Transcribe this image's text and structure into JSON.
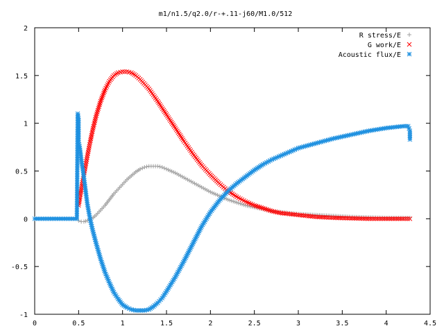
{
  "chart_data": {
    "type": "scatter",
    "title": "m1/n1.5/q2.0/r-+.11-j60/M1.0/512",
    "xlabel": "",
    "ylabel": "",
    "xlim": [
      0,
      4.5
    ],
    "ylim": [
      -1,
      2
    ],
    "xticks": [
      "0",
      "0.5",
      "1",
      "1.5",
      "2",
      "2.5",
      "3",
      "3.5",
      "4",
      "4.5"
    ],
    "yticks": [
      "2",
      "1.5",
      "1",
      "0.5",
      "0",
      "-0.5",
      "-1"
    ],
    "legend_position": "top-right",
    "series": [
      {
        "name": "R stress/E",
        "marker": "plus",
        "color": "#a0a0a0",
        "x": [
          0.5,
          0.53,
          0.56,
          0.6,
          0.65,
          0.7,
          0.75,
          0.8,
          0.85,
          0.9,
          0.95,
          1.0,
          1.05,
          1.1,
          1.15,
          1.2,
          1.25,
          1.3,
          1.35,
          1.4,
          1.45,
          1.5,
          1.6,
          1.7,
          1.8,
          1.9,
          2.0,
          2.1,
          2.2,
          2.3,
          2.4,
          2.5,
          2.6,
          2.7,
          2.8,
          2.9,
          3.0,
          3.2,
          3.4,
          3.6,
          3.8,
          4.0,
          4.2,
          4.27
        ],
        "y": [
          -0.02,
          -0.03,
          -0.03,
          -0.02,
          0.0,
          0.04,
          0.09,
          0.14,
          0.2,
          0.26,
          0.31,
          0.36,
          0.41,
          0.45,
          0.49,
          0.52,
          0.54,
          0.55,
          0.55,
          0.55,
          0.54,
          0.52,
          0.48,
          0.43,
          0.38,
          0.33,
          0.28,
          0.24,
          0.2,
          0.17,
          0.14,
          0.12,
          0.1,
          0.08,
          0.07,
          0.06,
          0.05,
          0.04,
          0.03,
          0.02,
          0.015,
          0.01,
          0.01,
          0.01
        ]
      },
      {
        "name": "G work/E",
        "marker": "cross",
        "color": "#ff0000",
        "x": [
          0.5,
          0.52,
          0.54,
          0.56,
          0.58,
          0.6,
          0.63,
          0.66,
          0.7,
          0.75,
          0.8,
          0.85,
          0.9,
          0.95,
          1.0,
          1.05,
          1.1,
          1.15,
          1.2,
          1.3,
          1.4,
          1.5,
          1.6,
          1.7,
          1.8,
          1.9,
          2.0,
          2.1,
          2.2,
          2.3,
          2.4,
          2.5,
          2.6,
          2.7,
          2.8,
          2.9,
          3.0,
          3.2,
          3.4,
          3.6,
          3.8,
          4.0,
          4.2,
          4.27
        ],
        "y": [
          0.14,
          0.25,
          0.36,
          0.46,
          0.56,
          0.66,
          0.8,
          0.93,
          1.08,
          1.23,
          1.35,
          1.44,
          1.5,
          1.53,
          1.54,
          1.54,
          1.53,
          1.5,
          1.46,
          1.36,
          1.23,
          1.09,
          0.95,
          0.81,
          0.68,
          0.56,
          0.46,
          0.37,
          0.29,
          0.23,
          0.18,
          0.14,
          0.11,
          0.08,
          0.06,
          0.05,
          0.04,
          0.02,
          0.01,
          0.005,
          0.0,
          0.0,
          0.0,
          0.0
        ]
      },
      {
        "name": "Acoustic flux/E",
        "marker": "star",
        "color": "#1e90e0",
        "x": [
          0,
          0.1,
          0.2,
          0.3,
          0.4,
          0.48,
          0.49,
          0.5,
          0.5,
          0.51,
          0.52,
          0.53,
          0.55,
          0.57,
          0.6,
          0.63,
          0.66,
          0.7,
          0.75,
          0.8,
          0.85,
          0.9,
          0.95,
          1.0,
          1.05,
          1.1,
          1.15,
          1.2,
          1.25,
          1.3,
          1.35,
          1.4,
          1.45,
          1.5,
          1.6,
          1.7,
          1.8,
          1.9,
          2.0,
          2.1,
          2.2,
          2.3,
          2.4,
          2.5,
          2.6,
          2.7,
          2.8,
          2.9,
          3.0,
          3.2,
          3.4,
          3.6,
          3.8,
          4.0,
          4.1,
          4.2,
          4.25,
          4.27,
          4.27
        ],
        "y": [
          0,
          0,
          0,
          0,
          0,
          0,
          1.1,
          1.03,
          0.8,
          0.76,
          0.7,
          0.62,
          0.5,
          0.36,
          0.15,
          0.0,
          -0.12,
          -0.26,
          -0.42,
          -0.56,
          -0.67,
          -0.77,
          -0.84,
          -0.9,
          -0.93,
          -0.95,
          -0.96,
          -0.96,
          -0.96,
          -0.95,
          -0.92,
          -0.88,
          -0.83,
          -0.76,
          -0.61,
          -0.44,
          -0.26,
          -0.08,
          0.07,
          0.19,
          0.29,
          0.37,
          0.44,
          0.51,
          0.57,
          0.62,
          0.66,
          0.7,
          0.74,
          0.79,
          0.84,
          0.88,
          0.92,
          0.95,
          0.96,
          0.97,
          0.97,
          0.92,
          0.83
        ]
      }
    ]
  }
}
